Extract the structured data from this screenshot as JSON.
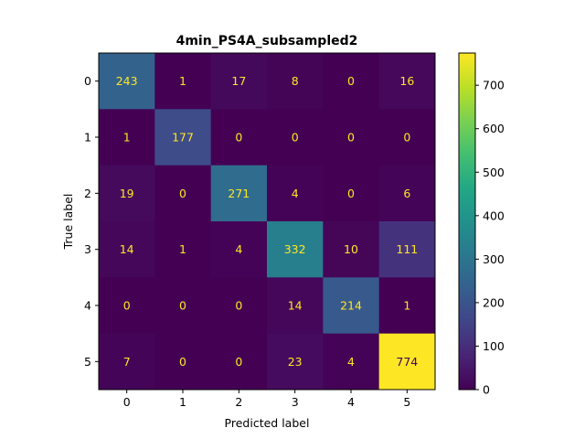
{
  "chart_data": {
    "type": "heatmap",
    "title": "4min_PS4A_subsampled2",
    "xlabel": "Predicted label",
    "ylabel": "True label",
    "x_categories": [
      "0",
      "1",
      "2",
      "3",
      "4",
      "5"
    ],
    "y_categories": [
      "0",
      "1",
      "2",
      "3",
      "4",
      "5"
    ],
    "matrix": [
      [
        243,
        1,
        17,
        8,
        0,
        16
      ],
      [
        1,
        177,
        0,
        0,
        0,
        0
      ],
      [
        19,
        0,
        271,
        4,
        0,
        6
      ],
      [
        14,
        1,
        4,
        332,
        10,
        111
      ],
      [
        0,
        0,
        0,
        14,
        214,
        1
      ],
      [
        7,
        0,
        0,
        23,
        4,
        774
      ]
    ],
    "colormap": "viridis",
    "vmin": 0,
    "vmax": 774,
    "colorbar_ticks": [
      "0",
      "100",
      "200",
      "300",
      "400",
      "500",
      "600",
      "700"
    ],
    "colorbar_tick_values": [
      0,
      100,
      200,
      300,
      400,
      500,
      600,
      700
    ],
    "label_color_low": "#fde725",
    "label_color_high": "#440154"
  }
}
